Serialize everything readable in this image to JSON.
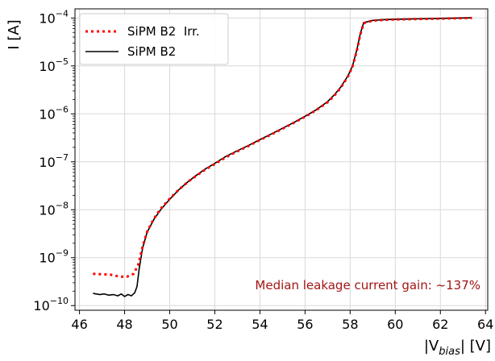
{
  "chart_data": {
    "type": "line",
    "xlabel": "|V_bias| [V]",
    "ylabel": "I [A]",
    "y_scale": "log",
    "xlim": [
      45.8,
      64.1
    ],
    "ylim": [
      8e-11,
      0.000155
    ],
    "x_ticks": [
      46,
      48,
      50,
      52,
      54,
      56,
      58,
      60,
      62,
      64
    ],
    "y_ticks": [
      1e-10,
      1e-09,
      1e-08,
      1e-07,
      1e-06,
      1e-05,
      0.0001
    ],
    "grid": true,
    "legend_position": "top-left",
    "annotation": "Median leakage current gain: ~137%",
    "annotation_color": "#a31515",
    "series": [
      {
        "name": "SiPM B2  Irr.",
        "style": "dotted",
        "color": "#ff0000",
        "x": [
          46.6,
          47.0,
          47.4,
          47.8,
          48.1,
          48.4,
          48.6,
          48.8,
          49.0,
          49.3,
          49.6,
          50.0,
          50.4,
          50.8,
          51.2,
          51.6,
          52.0,
          52.5,
          53.0,
          53.5,
          54.0,
          54.5,
          55.0,
          55.5,
          56.0,
          56.5,
          57.0,
          57.3,
          57.6,
          57.9,
          58.1,
          58.3,
          58.45,
          58.6,
          59.0,
          59.5,
          60.0,
          61.0,
          62.0,
          63.0,
          63.4
        ],
        "y": [
          4.6e-10,
          4.5e-10,
          4.4e-10,
          4e-10,
          4e-10,
          4.6e-10,
          7e-10,
          1.7e-09,
          3.5e-09,
          6.5e-09,
          1.05e-08,
          1.7e-08,
          2.6e-08,
          3.8e-08,
          5.2e-08,
          7e-08,
          9e-08,
          1.25e-07,
          1.65e-07,
          2.15e-07,
          2.85e-07,
          3.7e-07,
          4.9e-07,
          6.5e-07,
          8.7e-07,
          1.2e-06,
          1.75e-06,
          2.4e-06,
          3.6e-06,
          6e-06,
          9.5e-06,
          2.1e-05,
          4.5e-05,
          7.8e-05,
          8.8e-05,
          9.1e-05,
          9.3e-05,
          9.5e-05,
          9.7e-05,
          9.9e-05,
          0.0001
        ]
      },
      {
        "name": "SiPM B2",
        "style": "solid",
        "color": "#000000",
        "x": [
          46.6,
          46.9,
          47.1,
          47.3,
          47.5,
          47.7,
          47.85,
          48.0,
          48.15,
          48.3,
          48.45,
          48.55,
          48.65,
          48.8,
          49.0,
          49.3,
          49.6,
          50.0,
          50.4,
          50.8,
          51.2,
          51.6,
          52.0,
          52.5,
          53.0,
          53.5,
          54.0,
          54.5,
          55.0,
          55.5,
          56.0,
          56.5,
          57.0,
          57.3,
          57.6,
          57.9,
          58.1,
          58.3,
          58.45,
          58.6,
          59.0,
          59.5,
          60.0,
          61.0,
          62.0,
          63.0,
          63.4
        ],
        "y": [
          1.8e-10,
          1.7e-10,
          1.75e-10,
          1.65e-10,
          1.7e-10,
          1.6e-10,
          1.75e-10,
          1.55e-10,
          1.7e-10,
          1.6e-10,
          1.85e-10,
          2.5e-10,
          6e-10,
          1.6e-09,
          3.4e-09,
          6.3e-09,
          1e-08,
          1.65e-08,
          2.6e-08,
          3.8e-08,
          5.3e-08,
          7.2e-08,
          9.3e-08,
          1.3e-07,
          1.7e-07,
          2.2e-07,
          2.9e-07,
          3.8e-07,
          5e-07,
          6.6e-07,
          8.9e-07,
          1.22e-06,
          1.8e-06,
          2.5e-06,
          3.7e-06,
          6.2e-06,
          9.8e-06,
          2.2e-05,
          4.7e-05,
          8e-05,
          8.9e-05,
          9.2e-05,
          9.4e-05,
          9.6e-05,
          9.8e-05,
          0.0001,
          0.000101
        ]
      }
    ]
  },
  "axes": {
    "x_label_main": "|V",
    "x_label_sub": "bias",
    "x_label_tail": "| [V]",
    "y_label": "I [A]",
    "x_tick_labels": [
      "46",
      "48",
      "50",
      "52",
      "54",
      "56",
      "58",
      "60",
      "62",
      "64"
    ],
    "y_tick_exponents": [
      "−10",
      "−9",
      "−8",
      "−7",
      "−6",
      "−5",
      "−4"
    ],
    "y_tick_base": "10"
  }
}
